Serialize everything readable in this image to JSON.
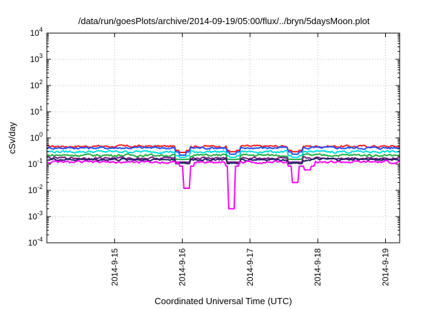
{
  "chart_data": {
    "type": "line",
    "title": "/data/run/goesPlots/archive/2014-09-19/05:00/flux/../bryn/5daysMoon.plot",
    "xlabel": "Coordinated Universal Time (UTC)",
    "ylabel": "cSv/day",
    "yscale": "log",
    "ylim": [
      0.0001,
      10000
    ],
    "xlim": [
      "2014-09-14 00:00",
      "2014-09-19 05:00"
    ],
    "grid": true,
    "y_ticks": [
      {
        "value": 0.0001,
        "base": "10",
        "exp": "-4"
      },
      {
        "value": 0.001,
        "base": "10",
        "exp": "-3"
      },
      {
        "value": 0.01,
        "base": "10",
        "exp": "-2"
      },
      {
        "value": 0.1,
        "base": "10",
        "exp": "-1"
      },
      {
        "value": 1,
        "base": "10",
        "exp": "0"
      },
      {
        "value": 10,
        "base": "10",
        "exp": "1"
      },
      {
        "value": 100,
        "base": "10",
        "exp": "2"
      },
      {
        "value": 1000,
        "base": "10",
        "exp": "3"
      },
      {
        "value": 10000,
        "base": "10",
        "exp": "4"
      }
    ],
    "x_ticks": [
      {
        "value": "2014-09-15 00:00",
        "label": "2014-9-15"
      },
      {
        "value": "2014-09-16 00:00",
        "label": "2014-9-16"
      },
      {
        "value": "2014-09-17 00:00",
        "label": "2014-9-17"
      },
      {
        "value": "2014-09-18 00:00",
        "label": "2014-9-18"
      },
      {
        "value": "2014-09-19 00:00",
        "label": "2014-9-19"
      }
    ],
    "series": [
      {
        "color": "#ff2020",
        "level": 0.48,
        "dips": [
          {
            "x": "2014-09-16 00:10",
            "y": 0.28
          },
          {
            "x": "2014-09-16 18:00",
            "y": 0.3
          },
          {
            "x": "2014-09-17 16:00",
            "y": 0.3
          }
        ]
      },
      {
        "color": "#2050ff",
        "level": 0.42,
        "dips": [
          {
            "x": "2014-09-16 00:10",
            "y": 0.22
          },
          {
            "x": "2014-09-16 18:00",
            "y": 0.24
          },
          {
            "x": "2014-09-17 16:00",
            "y": 0.24
          }
        ]
      },
      {
        "color": "#00e0e0",
        "level": 0.3,
        "dips": [
          {
            "x": "2014-09-16 00:10",
            "y": 0.18
          },
          {
            "x": "2014-09-16 18:00",
            "y": 0.18
          },
          {
            "x": "2014-09-17 16:00",
            "y": 0.18
          }
        ]
      },
      {
        "color": "#20b040",
        "level": 0.22,
        "dips": [
          {
            "x": "2014-09-16 00:10",
            "y": 0.15
          },
          {
            "x": "2014-09-16 18:00",
            "y": 0.15
          },
          {
            "x": "2014-09-17 16:00",
            "y": 0.15
          }
        ]
      },
      {
        "color": "#7a1a8a",
        "level": 0.17,
        "dips": [
          {
            "x": "2014-09-16 00:10",
            "y": 0.12
          },
          {
            "x": "2014-09-16 18:00",
            "y": 0.12
          },
          {
            "x": "2014-09-17 16:00",
            "y": 0.12
          }
        ]
      },
      {
        "color": "#202060",
        "level": 0.15,
        "dips": [
          {
            "x": "2014-09-16 00:10",
            "y": 0.11
          },
          {
            "x": "2014-09-16 18:00",
            "y": 0.11
          },
          {
            "x": "2014-09-17 16:00",
            "y": 0.11
          }
        ]
      },
      {
        "color": "#ff00ff",
        "level": 0.12,
        "dips": [
          {
            "x": "2014-09-16 01:30",
            "y": 0.012
          },
          {
            "x": "2014-09-16 17:30",
            "y": 0.002
          },
          {
            "x": "2014-09-17 16:00",
            "y": 0.02
          },
          {
            "x": "2014-09-17 20:30",
            "y": 0.06
          }
        ]
      }
    ]
  }
}
